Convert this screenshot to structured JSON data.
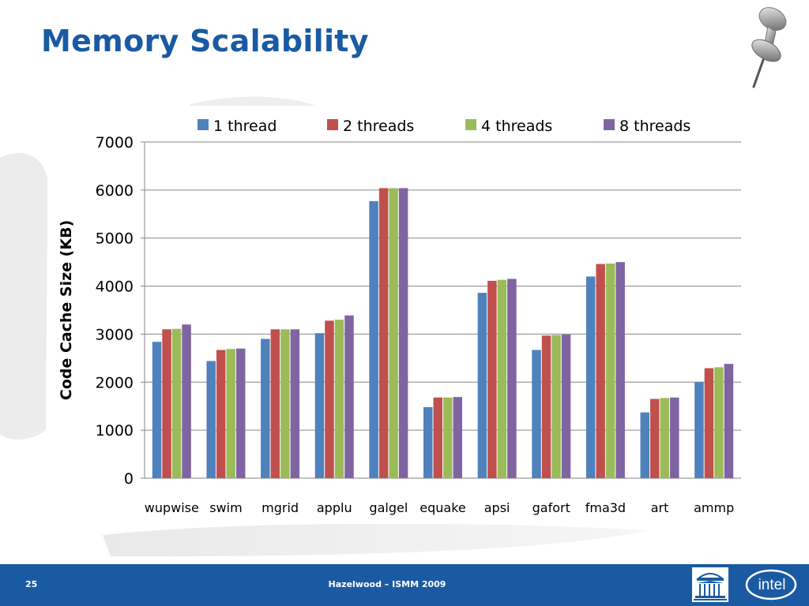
{
  "slide": {
    "title": "Memory Scalability",
    "page_number": "25",
    "footer_text": "Hazelwood – ISMM 2009",
    "logo_lettering": "intel"
  },
  "colors": {
    "title": "#1a5aa3",
    "footer_bar": "#1a5aa3",
    "series": [
      "#4f81bd",
      "#c0504d",
      "#9bbb59",
      "#8064a2"
    ],
    "grid": "#868686"
  },
  "icons": [
    "pushpin-icon",
    "uva-rotunda-logo",
    "intel-logo"
  ],
  "chart_data": {
    "type": "bar",
    "title": "",
    "xlabel": "",
    "ylabel": "Code Cache Size (KB)",
    "ylim": [
      0,
      7000
    ],
    "yticks": [
      0,
      1000,
      2000,
      3000,
      4000,
      5000,
      6000,
      7000
    ],
    "grid": true,
    "legend_position": "top",
    "categories": [
      "wupwise",
      "swim",
      "mgrid",
      "applu",
      "galgel",
      "equake",
      "apsi",
      "gafort",
      "fma3d",
      "art",
      "ammp"
    ],
    "series": [
      {
        "name": "1 thread",
        "values": [
          2840,
          2440,
          2900,
          3020,
          5770,
          1480,
          3860,
          2670,
          4200,
          1370,
          2000
        ]
      },
      {
        "name": "2 threads",
        "values": [
          3100,
          2670,
          3100,
          3280,
          6040,
          1680,
          4110,
          2970,
          4460,
          1650,
          2290
        ]
      },
      {
        "name": "4 threads",
        "values": [
          3110,
          2690,
          3100,
          3300,
          6040,
          1680,
          4130,
          2980,
          4470,
          1670,
          2310
        ]
      },
      {
        "name": "8 threads",
        "values": [
          3200,
          2700,
          3100,
          3390,
          6040,
          1690,
          4150,
          2990,
          4500,
          1680,
          2380
        ]
      }
    ]
  }
}
